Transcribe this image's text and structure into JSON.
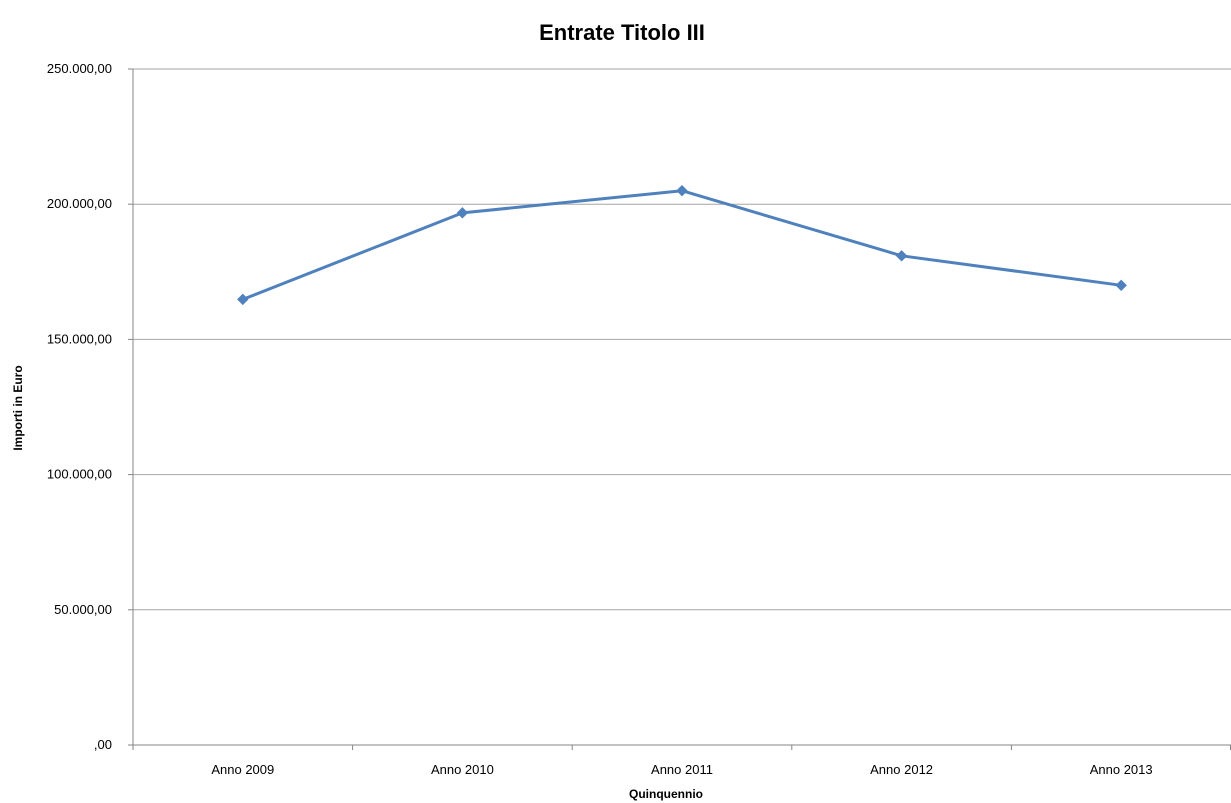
{
  "chart_data": {
    "type": "line",
    "title": "Entrate Titolo III",
    "xlabel": "Quinquennio",
    "ylabel": "Importi in Euro",
    "categories": [
      "Anno 2009",
      "Anno 2010",
      "Anno 2011",
      "Anno 2012",
      "Anno 2013"
    ],
    "series": [
      {
        "values": [
          164800,
          196800,
          205000,
          180900,
          170000
        ],
        "color": "#4F81BD",
        "marker": "diamond"
      }
    ],
    "ylim": [
      0,
      250000
    ],
    "y_ticks": [
      0,
      50000,
      100000,
      150000,
      200000,
      250000
    ],
    "y_tick_labels": [
      ",00",
      "50.000,00",
      "100.000,00",
      "150.000,00",
      "200.000,00",
      "250.000,00"
    ],
    "grid": true,
    "legend": "none",
    "colors": {
      "gridline": "#A6A6A6",
      "axis": "#868686",
      "series": "#4F81BD"
    }
  }
}
